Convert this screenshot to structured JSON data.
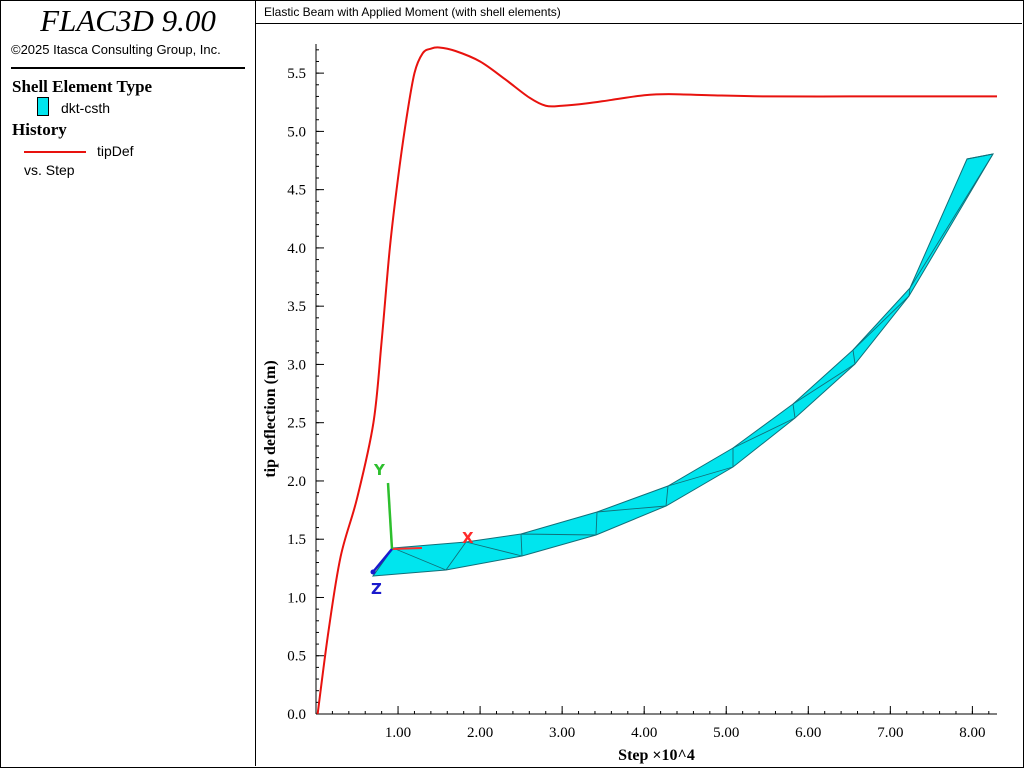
{
  "app": {
    "name": "FLAC3D 9.00",
    "copyright": "©2025 Itasca Consulting Group, Inc."
  },
  "legend": {
    "shell_heading": "Shell Element Type",
    "shell_item": "dkt-csth",
    "history_heading": "History",
    "history_item": "tipDef",
    "history_vs": "vs. Step"
  },
  "plot_title": "Elastic Beam with Applied Moment (with shell elements)",
  "colors": {
    "history_line": "#e8120e",
    "shell_fill": "#00e5ee",
    "axis_x": "#ff2a2a",
    "axis_y": "#2dbf2d",
    "axis_z": "#1a1acc"
  },
  "triad": {
    "x": "X",
    "y": "Y",
    "z": "Z"
  },
  "chart_data": {
    "type": "line",
    "title": "Elastic Beam with Applied Moment (with shell elements)",
    "xlabel": "Step ×10^4",
    "ylabel": "tip deflection (m)",
    "xlim": [
      0,
      8.3
    ],
    "ylim": [
      0,
      5.75
    ],
    "xticks": [
      1,
      2,
      3,
      4,
      5,
      6,
      7,
      8
    ],
    "xtick_labels": [
      "1.00",
      "2.00",
      "3.00",
      "4.00",
      "5.00",
      "6.00",
      "7.00",
      "8.00"
    ],
    "yticks": [
      0,
      0.5,
      1.0,
      1.5,
      2.0,
      2.5,
      3.0,
      3.5,
      4.0,
      4.5,
      5.0,
      5.5
    ],
    "ytick_labels": [
      "0.0",
      "0.5",
      "1.0",
      "1.5",
      "2.0",
      "2.5",
      "3.0",
      "3.5",
      "4.0",
      "4.5",
      "5.0",
      "5.5"
    ],
    "grid": false,
    "series": [
      {
        "name": "tipDef",
        "x": [
          0.02,
          0.15,
          0.3,
          0.5,
          0.7,
          0.8,
          0.9,
          1.0,
          1.1,
          1.2,
          1.3,
          1.4,
          1.5,
          1.7,
          2.0,
          2.3,
          2.6,
          2.8,
          3.0,
          3.3,
          3.6,
          4.0,
          4.3,
          4.8,
          5.5,
          6.5,
          7.5,
          8.3
        ],
        "y": [
          0.0,
          0.7,
          1.35,
          1.85,
          2.5,
          3.2,
          4.0,
          4.6,
          5.1,
          5.5,
          5.67,
          5.71,
          5.72,
          5.69,
          5.6,
          5.45,
          5.29,
          5.22,
          5.22,
          5.24,
          5.27,
          5.31,
          5.32,
          5.31,
          5.3,
          5.3,
          5.3,
          5.3
        ]
      }
    ]
  }
}
